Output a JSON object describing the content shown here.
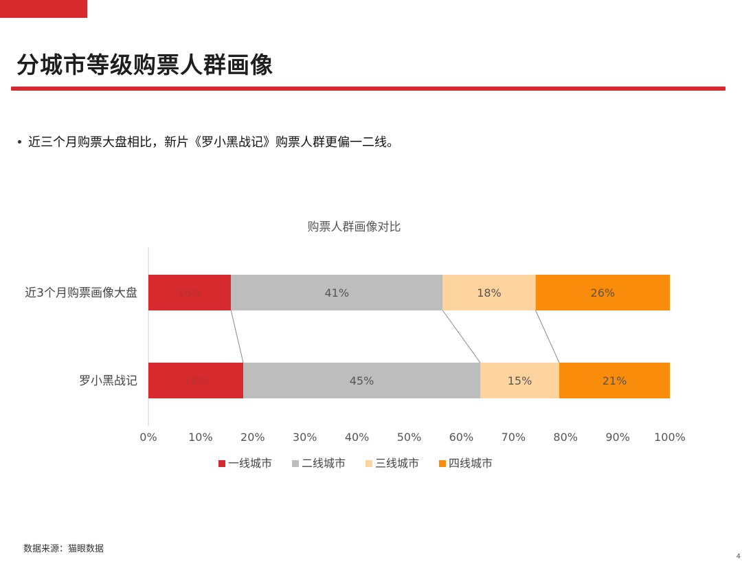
{
  "page": {
    "title": "分城市等级购票人群画像",
    "bullet": "近三个月购票大盘相比，新片《罗小黑战记》购票人群更偏一二线。",
    "source": "数据来源：猫眼数据",
    "page_number": "4"
  },
  "colors": {
    "accent": "#d62a2e"
  },
  "chart_data": {
    "type": "bar",
    "orientation": "horizontal",
    "stacked": "percent",
    "title": "购票人群画像对比",
    "categories": [
      "近3个月购票画像大盘",
      "罗小黑战记"
    ],
    "series": [
      {
        "name": "一线城市",
        "color": "#d62a2e",
        "values": [
          16,
          18
        ],
        "labels": [
          "16%",
          "18%"
        ]
      },
      {
        "name": "二线城市",
        "color": "#bdbdbd",
        "values": [
          41,
          45
        ],
        "labels": [
          "41%",
          "45%"
        ]
      },
      {
        "name": "三线城市",
        "color": "#fdd49e",
        "values": [
          18,
          15
        ],
        "labels": [
          "18%",
          "15%"
        ]
      },
      {
        "name": "四线城市",
        "color": "#f98c0a",
        "values": [
          26,
          21
        ],
        "labels": [
          "26%",
          "21%"
        ]
      }
    ],
    "xlim": [
      0,
      100
    ],
    "xticks": [
      "0%",
      "10%",
      "20%",
      "30%",
      "40%",
      "50%",
      "60%",
      "70%",
      "80%",
      "90%",
      "100%"
    ],
    "series_lines": true,
    "legend_position": "bottom",
    "grid": false
  }
}
